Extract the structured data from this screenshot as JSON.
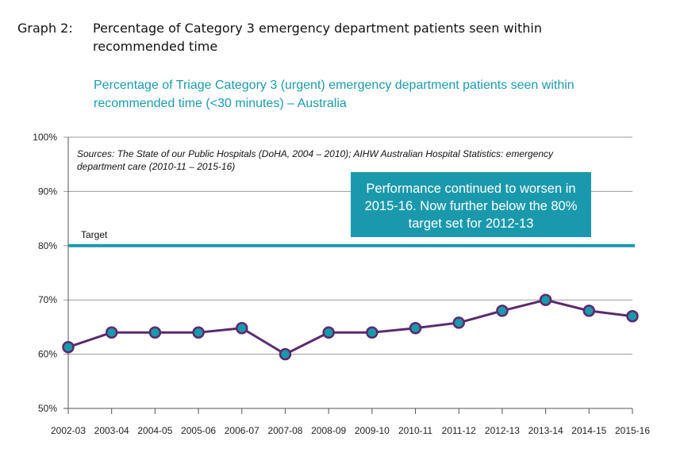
{
  "heading": {
    "number": "Graph 2:",
    "text": "Percentage of Category 3 emergency department patients seen within recommended time"
  },
  "subtitle": "Percentage of Triage Category 3 (urgent) emergency department patients seen within recommended time (<30 minutes) – Australia",
  "sources": "Sources: The State of our Public Hospitals (DoHA, 2004 – 2010); AIHW Australian Hospital Statistics: emergency department care (2010-11 – 2015-16)",
  "callout": "Performance continued to worsen in 2015-16. Now further below the 80% target set for 2012-13",
  "colors": {
    "line": "#5b2a6e",
    "marker_fill": "#1b99ac",
    "target_line": "#1b99ac",
    "callout_bg": "#1b99ac",
    "subtitle": "#1a9bb0",
    "grid": "#9a9a9a"
  },
  "chart_data": {
    "type": "line",
    "categories": [
      "2002-03",
      "2003-04",
      "2004-05",
      "2005-06",
      "2006-07",
      "2007-08",
      "2008-09",
      "2009-10",
      "2010-11",
      "2011-12",
      "2012-13",
      "2013-14",
      "2014-15",
      "2015-16"
    ],
    "series": [
      {
        "values": [
          61.3,
          64,
          64,
          64,
          64.8,
          60,
          64,
          64,
          64.8,
          65.8,
          68,
          70,
          68,
          67
        ]
      }
    ],
    "target": {
      "label": "Target",
      "value": 80
    },
    "yticks": [
      "50%",
      "60%",
      "70%",
      "80%",
      "90%",
      "100%"
    ],
    "ylim": [
      50,
      100
    ],
    "grid": true,
    "legend": "none"
  }
}
